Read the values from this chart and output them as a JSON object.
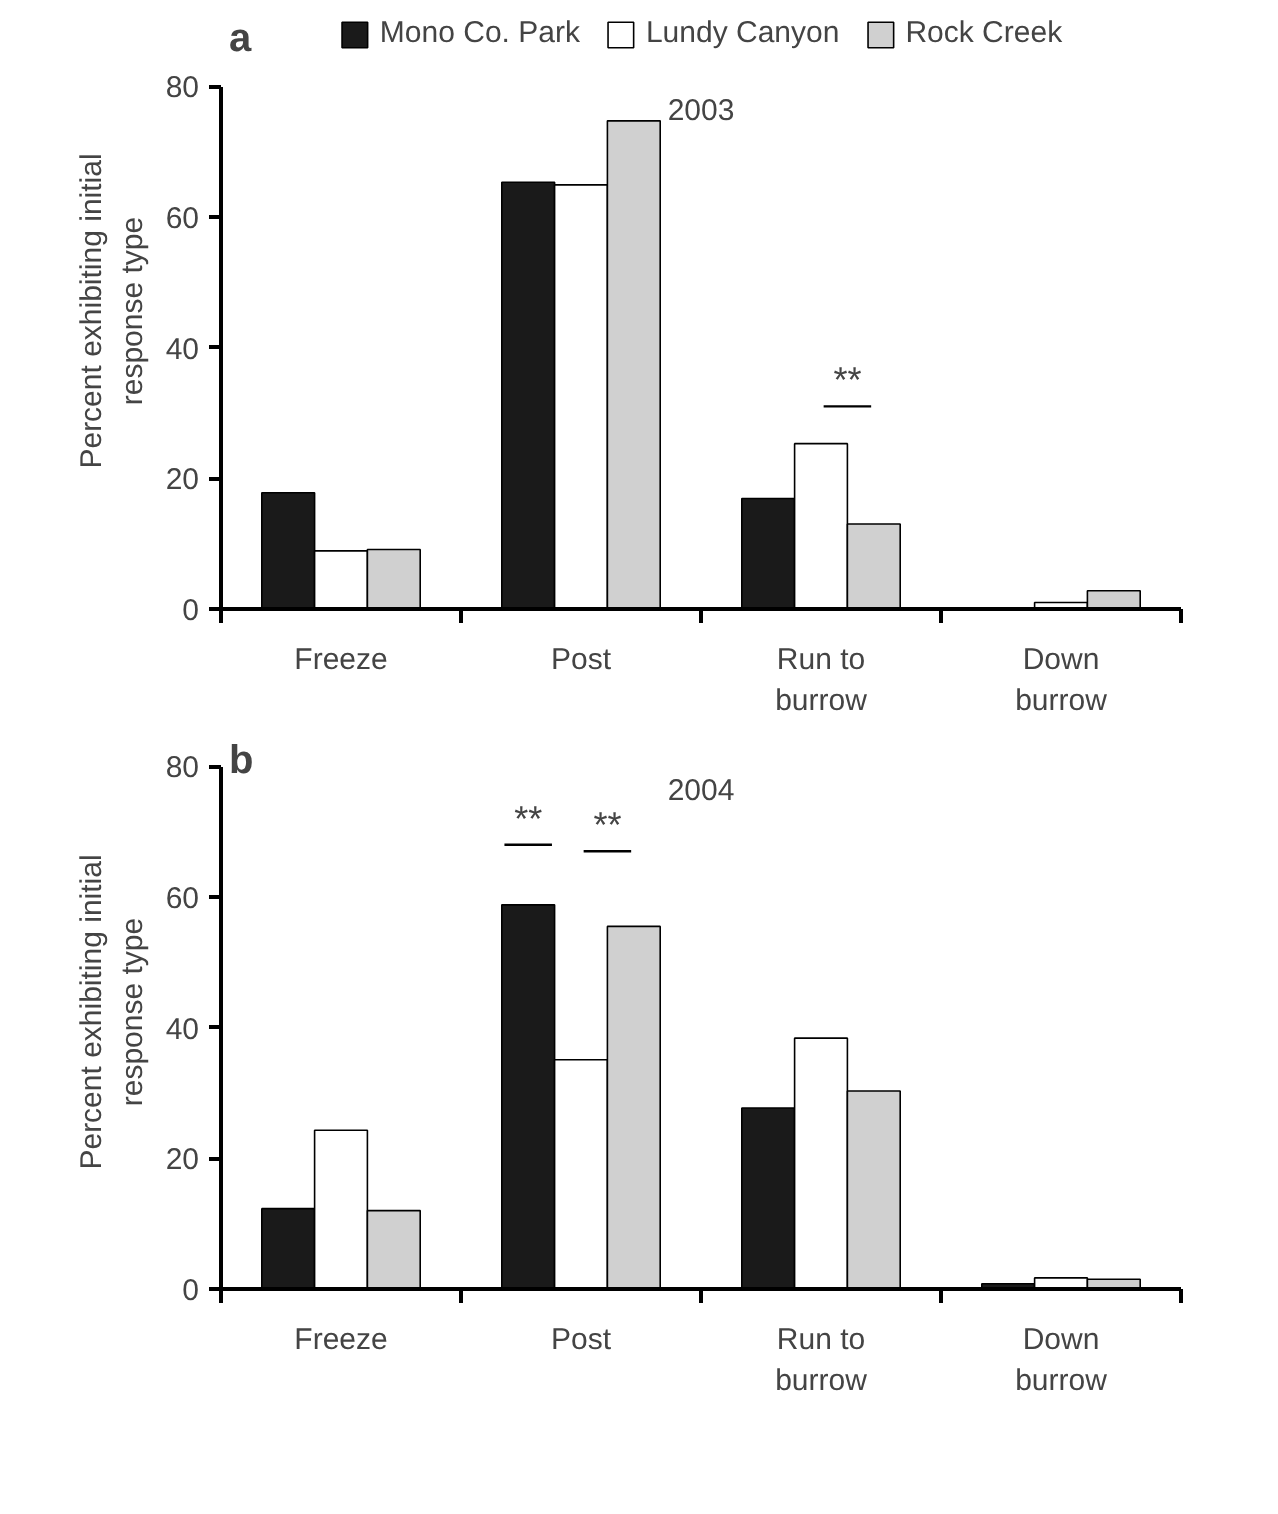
{
  "chart_data": [
    {
      "type": "bar",
      "title": "2003",
      "ylabel": "Percent exhibiting initial\nresponse type",
      "categories": [
        "Freeze",
        "Post",
        "Run to\nburrow",
        "Down\nburrow"
      ],
      "series": [
        {
          "name": "Mono Co. Park",
          "color": "#1a1a1a",
          "values": [
            17.8,
            65.3,
            16.9,
            0.2
          ]
        },
        {
          "name": "Lundy Canyon",
          "color": "#ffffff",
          "values": [
            8.9,
            64.9,
            25.3,
            1.0
          ]
        },
        {
          "name": "Rock Creek",
          "color": "#d0d0d0",
          "values": [
            9.1,
            74.7,
            13.0,
            2.8
          ]
        }
      ],
      "ylim": [
        0,
        80
      ],
      "yticks": [
        0,
        20,
        40,
        60,
        80
      ],
      "grid": false,
      "legend": "top",
      "annotations": [
        "a",
        "**"
      ]
    },
    {
      "type": "bar",
      "title": "2004",
      "ylabel": "Percent exhibiting initial\nresponse type",
      "categories": [
        "Freeze",
        "Post",
        "Run to\nburrow",
        "Down\nburrow"
      ],
      "series": [
        {
          "color": "#1a1a1a",
          "values": [
            12.3,
            58.8,
            27.7,
            0.8
          ]
        },
        {
          "color": "#ffffff",
          "values": [
            24.3,
            35.1,
            38.4,
            1.7
          ]
        },
        {
          "color": "#d0d0d0",
          "values": [
            12.0,
            55.5,
            30.3,
            1.5
          ]
        }
      ],
      "ylim": [
        0,
        80
      ],
      "yticks": [
        0,
        20,
        40,
        60,
        80
      ],
      "grid": false,
      "annotations": [
        "b",
        "**",
        "**"
      ]
    }
  ]
}
